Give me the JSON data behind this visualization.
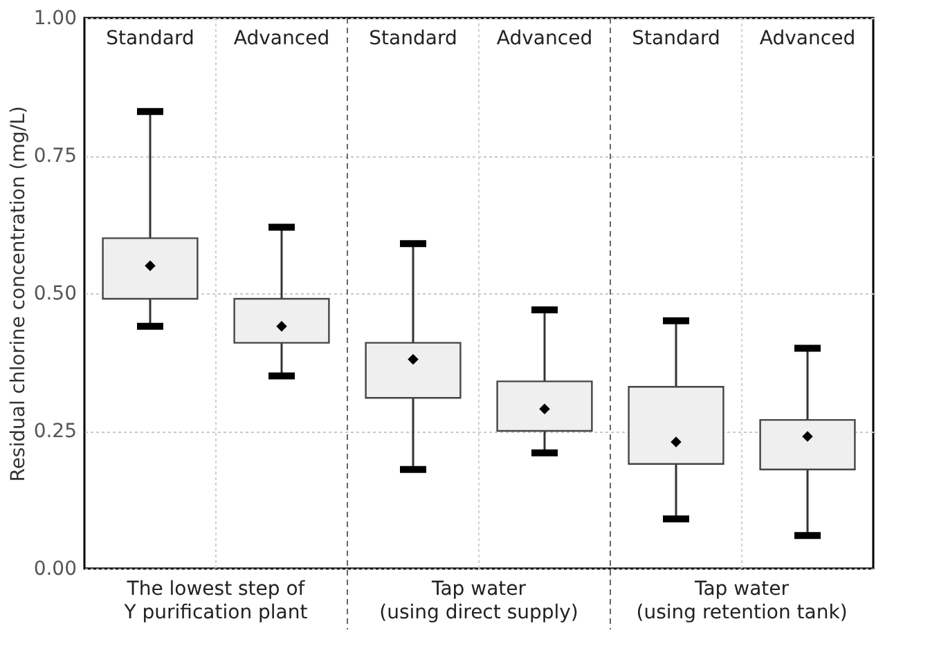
{
  "chart_data": {
    "type": "box",
    "ylabel": "Residual chlorine concentration (mg/L)",
    "categories": [
      "Standard",
      "Advanced",
      "Standard",
      "Advanced",
      "Standard",
      "Advanced"
    ],
    "boxes": [
      {
        "low": 0.44,
        "q1": 0.49,
        "q3": 0.6,
        "high": 0.83,
        "mean": 0.55
      },
      {
        "low": 0.35,
        "q1": 0.41,
        "q3": 0.49,
        "high": 0.62,
        "mean": 0.44
      },
      {
        "low": 0.18,
        "q1": 0.31,
        "q3": 0.41,
        "high": 0.59,
        "mean": 0.38
      },
      {
        "low": 0.21,
        "q1": 0.25,
        "q3": 0.34,
        "high": 0.47,
        "mean": 0.29
      },
      {
        "low": 0.09,
        "q1": 0.19,
        "q3": 0.33,
        "high": 0.45,
        "mean": 0.23
      },
      {
        "low": 0.06,
        "q1": 0.18,
        "q3": 0.27,
        "high": 0.4,
        "mean": 0.24
      }
    ],
    "annotations": [
      "The lowest step of\nY purification plant",
      "Tap water\n(using direct supply)",
      "Tap water\n(using retention tank)"
    ],
    "ylim": [
      0,
      1
    ],
    "yticks": [
      {
        "value": 0,
        "label": "0.00"
      },
      {
        "value": 0.25,
        "label": "0.25"
      },
      {
        "value": 0.5,
        "label": "0.50"
      },
      {
        "value": 0.75,
        "label": "0.75"
      },
      {
        "value": 1,
        "label": "1.00"
      }
    ],
    "grid": true
  }
}
